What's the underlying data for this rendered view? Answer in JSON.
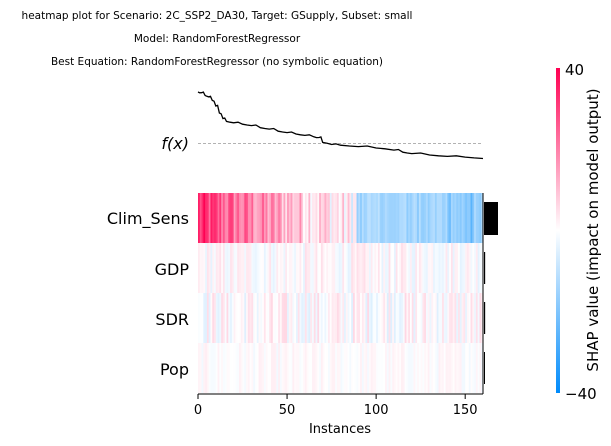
{
  "chart_data": {
    "type": "heatmap",
    "title_lines": [
      "heatmap plot for Scenario: 2C_SSP2_DA30, Target: GSupply, Subset: small",
      "Model: RandomForestRegressor",
      "Best Equation: RandomForestRegressor (no symbolic equation)"
    ],
    "fx_label": "f(x)",
    "xlabel": "Instances",
    "xlim": [
      0,
      160
    ],
    "xticks": [
      0,
      50,
      100,
      150
    ],
    "n_instances": 160,
    "features": [
      "Clim_Sens",
      "GDP",
      "SDR",
      "Pop"
    ],
    "feature_importance": [
      12,
      1,
      1,
      0.2
    ],
    "importance_max": 12,
    "colorbar": {
      "label": "SHAP value (impact on model output)",
      "vmin": -40,
      "vmax": 40,
      "low_color": "#008bfb",
      "mid_color": "#ffffff",
      "high_color": "#ff0052"
    },
    "fx_curve": [
      [
        0,
        1.0
      ],
      [
        2,
        0.99
      ],
      [
        4,
        0.95
      ],
      [
        6,
        0.93
      ],
      [
        8,
        0.88
      ],
      [
        10,
        0.8
      ],
      [
        12,
        0.7
      ],
      [
        14,
        0.62
      ],
      [
        16,
        0.58
      ],
      [
        20,
        0.56
      ],
      [
        25,
        0.54
      ],
      [
        30,
        0.52
      ],
      [
        35,
        0.49
      ],
      [
        40,
        0.47
      ],
      [
        45,
        0.44
      ],
      [
        50,
        0.42
      ],
      [
        55,
        0.4
      ],
      [
        60,
        0.38
      ],
      [
        65,
        0.36
      ],
      [
        68,
        0.35
      ],
      [
        70,
        0.28
      ],
      [
        75,
        0.25
      ],
      [
        80,
        0.24
      ],
      [
        90,
        0.22
      ],
      [
        100,
        0.2
      ],
      [
        110,
        0.17
      ],
      [
        115,
        0.14
      ],
      [
        120,
        0.12
      ],
      [
        130,
        0.1
      ],
      [
        140,
        0.08
      ],
      [
        150,
        0.07
      ],
      [
        160,
        0.05
      ]
    ],
    "fx_baseline": 0.35,
    "row_profiles": [
      {
        "pattern": "gradient",
        "start": 0.8,
        "end": -0.45,
        "noise": 0.25
      },
      {
        "pattern": "noise",
        "amplitude": 0.12
      },
      {
        "pattern": "noise",
        "amplitude": 0.15
      },
      {
        "pattern": "noise",
        "amplitude": 0.06
      }
    ]
  }
}
